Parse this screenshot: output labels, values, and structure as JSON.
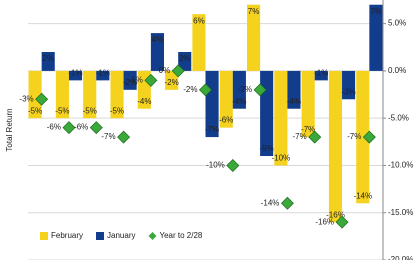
{
  "chart_data": {
    "type": "bar",
    "y_label": "Total Return",
    "categories": [
      null,
      null,
      null,
      null,
      null,
      null,
      null,
      null,
      null,
      null,
      null,
      null,
      null
    ],
    "series": [
      {
        "name": "February",
        "color": "#f5d21e",
        "values": [
          -5,
          -5,
          -5,
          -5,
          -4,
          -2,
          6,
          -6,
          7,
          -10,
          -7,
          -16,
          -14
        ],
        "value_labels": [
          "-5%",
          "-5%",
          "-5%",
          "-5%",
          "-4%",
          "-2%",
          "6%",
          "-6%",
          "7%",
          "-10%",
          "-7%",
          "-16%",
          "-14%"
        ]
      },
      {
        "name": "January",
        "color": "#123c8c",
        "values": [
          2,
          -1,
          -1,
          -2,
          4,
          2,
          -7,
          -4,
          -9,
          -4,
          -1,
          -3,
          7
        ],
        "value_labels": [
          "2%",
          "-1%",
          "-1%",
          "-2%",
          "4%",
          "2%",
          "-7%",
          "-4%",
          "-9%",
          "-4%",
          "-1%",
          "-3%",
          "7%"
        ]
      },
      {
        "name": "Year to 2/28",
        "type": "marker",
        "color": "#3aa83a",
        "values": [
          -3,
          -6,
          -6,
          -7,
          -1,
          0,
          -2,
          -10,
          -2,
          -14,
          -7,
          -16,
          -7
        ],
        "value_labels": [
          "-3%",
          "-6%",
          "-6%",
          "-7%",
          "-1%",
          "0%",
          "-2%",
          "-10%",
          "-2%",
          "-14%",
          "-7%",
          "-16%",
          "-7%"
        ]
      }
    ],
    "ylim": [
      -20,
      7.5
    ],
    "yticks": [
      {
        "value": 5,
        "label": "5.0%"
      },
      {
        "value": 0,
        "label": "0.0%"
      },
      {
        "value": -5,
        "label": "-5.0%"
      },
      {
        "value": -10,
        "label": "-10.0%"
      },
      {
        "value": -15,
        "label": "-15.0%"
      },
      {
        "value": -20,
        "label": "-20.0%"
      }
    ],
    "grid": true,
    "legend": "bottom-left"
  }
}
